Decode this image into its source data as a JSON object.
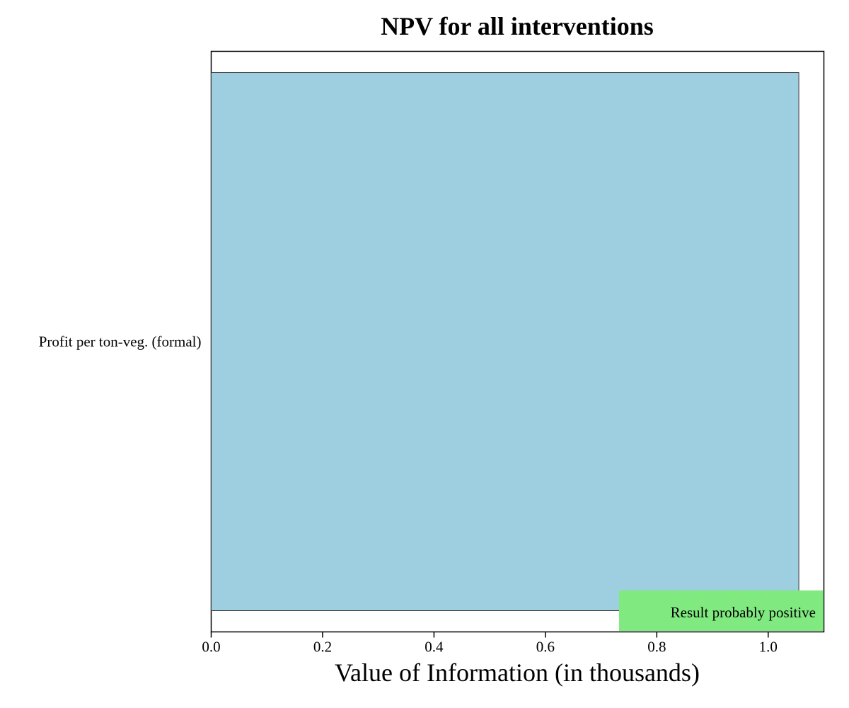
{
  "chart_data": {
    "type": "bar",
    "orientation": "horizontal",
    "title": "NPV for all interventions",
    "xlabel": "Value of Information (in thousands)",
    "ylabel": "",
    "categories": [
      "Profit per ton-veg. (formal)"
    ],
    "values": [
      1.055
    ],
    "xlim": [
      0,
      1.1
    ],
    "xticks": [
      "0.0",
      "0.2",
      "0.4",
      "0.6",
      "0.8",
      "1.0"
    ],
    "grid": false,
    "annotation": {
      "text": "Result probably positive",
      "placement": "bottom-right"
    },
    "colors": {
      "bar": "#9ecfe0",
      "bar_edge": "#3a3a3a",
      "annotation_bg": "#80ea80",
      "frame": "#000000"
    }
  }
}
